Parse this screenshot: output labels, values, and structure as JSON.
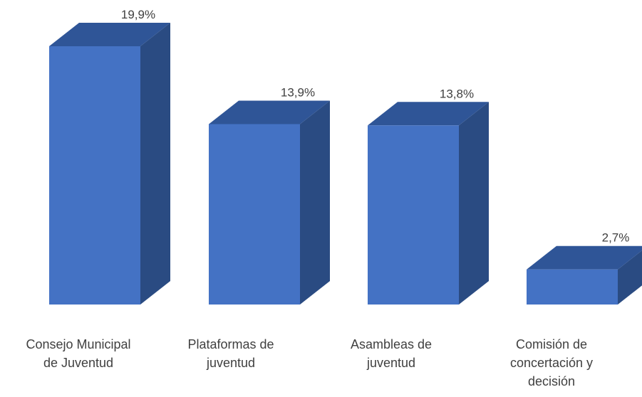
{
  "chart_data": {
    "type": "bar",
    "title": "",
    "xlabel": "",
    "ylabel": "",
    "categories": [
      "Consejo Municipal de Juventud",
      "Plataformas de juventud",
      "Asambleas de juventud",
      "Comisión de concertación y decisión"
    ],
    "category_lines": [
      [
        "Consejo Municipal",
        "de Juventud"
      ],
      [
        "Plataformas de",
        "juventud"
      ],
      [
        "Asambleas de",
        "juventud"
      ],
      [
        "Comisión de",
        "concertación y",
        "decisión"
      ]
    ],
    "values": [
      19.9,
      13.9,
      13.8,
      2.7
    ],
    "value_labels": [
      "19,9%",
      "13,9%",
      "13,8%",
      "2,7%"
    ],
    "ylim": [
      0,
      20
    ],
    "grid": false,
    "legend": "none",
    "style": "3d-column",
    "colors": {
      "front": "#4472C4",
      "top": "#2F5597",
      "side": "#2A4B82"
    }
  }
}
